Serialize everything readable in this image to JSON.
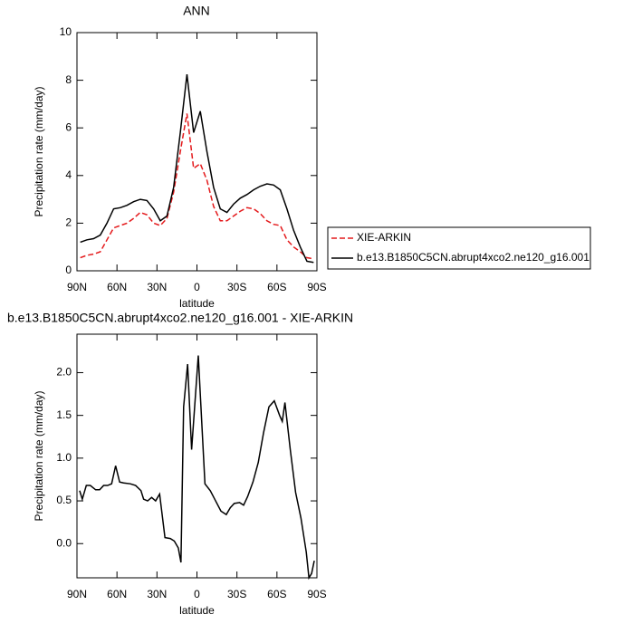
{
  "chart_data": [
    {
      "type": "line",
      "title": "ANN",
      "x_label": "latitude",
      "y_label": "Precipitation rate (mm/day)",
      "x": [
        87.5,
        82.5,
        77.5,
        72.5,
        67.5,
        62.5,
        57.5,
        52.5,
        47.5,
        42.5,
        37.5,
        32.5,
        27.5,
        22.5,
        17.5,
        12.5,
        7.5,
        2.5,
        -2.5,
        -7.5,
        -12.5,
        -17.5,
        -22.5,
        -27.5,
        -32.5,
        -37.5,
        -42.5,
        -47.5,
        -52.5,
        -57.5,
        -62.5,
        -67.5,
        -72.5,
        -77.5,
        -82.5,
        -87.5
      ],
      "series": [
        {
          "name": "XIE-ARKIN",
          "color": "#e41a1c",
          "line_style": "dashed",
          "values": [
            0.55,
            0.65,
            0.7,
            0.8,
            1.3,
            1.8,
            1.9,
            2.0,
            2.2,
            2.45,
            2.35,
            2.0,
            1.9,
            2.2,
            3.3,
            5.0,
            6.6,
            4.3,
            4.5,
            3.8,
            2.7,
            2.1,
            2.1,
            2.3,
            2.5,
            2.65,
            2.6,
            2.4,
            2.1,
            1.95,
            1.9,
            1.3,
            1.0,
            0.8,
            0.55,
            0.5
          ]
        },
        {
          "name": "b.e13.B1850C5CN.abrupt4xco2.ne120_g16.001",
          "color": "#000000",
          "line_style": "solid",
          "values": [
            1.2,
            1.3,
            1.35,
            1.5,
            2.0,
            2.6,
            2.65,
            2.75,
            2.9,
            3.0,
            2.95,
            2.6,
            2.1,
            2.3,
            3.5,
            5.8,
            8.25,
            5.8,
            6.7,
            5.0,
            3.5,
            2.6,
            2.45,
            2.8,
            3.05,
            3.2,
            3.4,
            3.55,
            3.65,
            3.6,
            3.4,
            2.6,
            1.7,
            1.0,
            0.4,
            0.35
          ]
        }
      ],
      "xlim": [
        90,
        -90
      ],
      "xticks": [
        {
          "value": 90,
          "label": "90N"
        },
        {
          "value": 60,
          "label": "60N"
        },
        {
          "value": 30,
          "label": "30N"
        },
        0,
        {
          "value": -30,
          "label": "30S"
        },
        {
          "value": -60,
          "label": "60S"
        },
        {
          "value": -90,
          "label": "90S"
        }
      ],
      "ylim": [
        0,
        10
      ],
      "yticks": [
        0,
        2,
        4,
        6,
        8,
        10
      ],
      "legend": "outside right"
    },
    {
      "type": "line",
      "title": "b.e13.B1850C5CN.abrupt4xco2.ne120_g16.001 - XIE-ARKIN",
      "x_label": "latitude",
      "y_label": "Precipitation rate (mm/day)",
      "x": [
        88,
        86,
        83,
        80,
        76,
        73,
        70,
        67,
        64,
        61,
        58,
        55,
        50,
        46,
        42,
        40,
        37,
        34,
        31,
        28,
        24,
        20,
        17,
        14,
        12,
        10,
        7,
        4,
        -1,
        -6,
        -10,
        -14,
        -18,
        -22,
        -25,
        -28,
        -32,
        -35,
        -38,
        -42,
        -46,
        -50,
        -54,
        -58,
        -62,
        -64,
        -66,
        -70,
        -74,
        -78,
        -82,
        -84,
        -86,
        -88
      ],
      "series": [
        {
          "color": "#000000",
          "line_style": "solid",
          "values": [
            0.62,
            0.52,
            0.68,
            0.68,
            0.63,
            0.63,
            0.68,
            0.68,
            0.7,
            0.91,
            0.72,
            0.71,
            0.7,
            0.68,
            0.62,
            0.52,
            0.5,
            0.54,
            0.5,
            0.58,
            0.07,
            0.06,
            0.03,
            -0.05,
            -0.22,
            1.6,
            2.1,
            1.1,
            2.2,
            0.7,
            0.62,
            0.5,
            0.38,
            0.34,
            0.42,
            0.47,
            0.48,
            0.45,
            0.55,
            0.72,
            0.95,
            1.3,
            1.6,
            1.67,
            1.5,
            1.43,
            1.65,
            1.1,
            0.6,
            0.3,
            -0.1,
            -0.4,
            -0.35,
            -0.2
          ]
        }
      ],
      "xlim": [
        90,
        -90
      ],
      "xticks": [
        {
          "value": 90,
          "label": "90N"
        },
        {
          "value": 60,
          "label": "60N"
        },
        {
          "value": 30,
          "label": "30N"
        },
        0,
        {
          "value": -30,
          "label": "30S"
        },
        {
          "value": -60,
          "label": "60S"
        },
        {
          "value": -90,
          "label": "90S"
        }
      ],
      "ylim": [
        -0.4,
        2.45
      ],
      "yticks": [
        {
          "value": 0,
          "label": "0.0"
        },
        0.5,
        {
          "value": 1,
          "label": "1.0"
        },
        1.5,
        {
          "value": 2,
          "label": "2.0"
        }
      ]
    }
  ]
}
